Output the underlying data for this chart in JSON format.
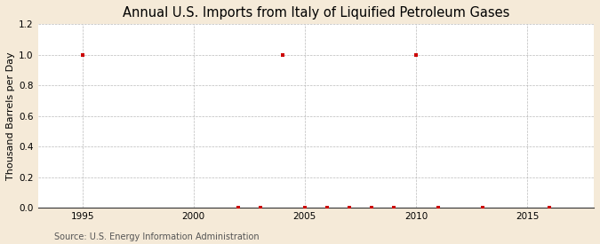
{
  "title": "Annual U.S. Imports from Italy of Liquified Petroleum Gases",
  "ylabel": "Thousand Barrels per Day",
  "source_text": "Source: U.S. Energy Information Administration",
  "xlim": [
    1993,
    2018
  ],
  "ylim": [
    0.0,
    1.2
  ],
  "xticks": [
    1995,
    2000,
    2005,
    2010,
    2015
  ],
  "yticks": [
    0.0,
    0.2,
    0.4,
    0.6,
    0.8,
    1.0,
    1.2
  ],
  "background_color": "#f5ead8",
  "plot_bg_color": "#ffffff",
  "grid_color": "#aaaaaa",
  "marker_color": "#cc0000",
  "data_x": [
    1995,
    2002,
    2003,
    2004,
    2005,
    2006,
    2007,
    2008,
    2009,
    2010,
    2011,
    2013,
    2016
  ],
  "data_y": [
    1.0,
    0.0,
    0.0,
    1.0,
    0.0,
    0.0,
    0.0,
    0.0,
    0.0,
    1.0,
    0.0,
    0.0,
    0.0
  ],
  "title_fontsize": 10.5,
  "label_fontsize": 8,
  "tick_fontsize": 7.5,
  "source_fontsize": 7
}
